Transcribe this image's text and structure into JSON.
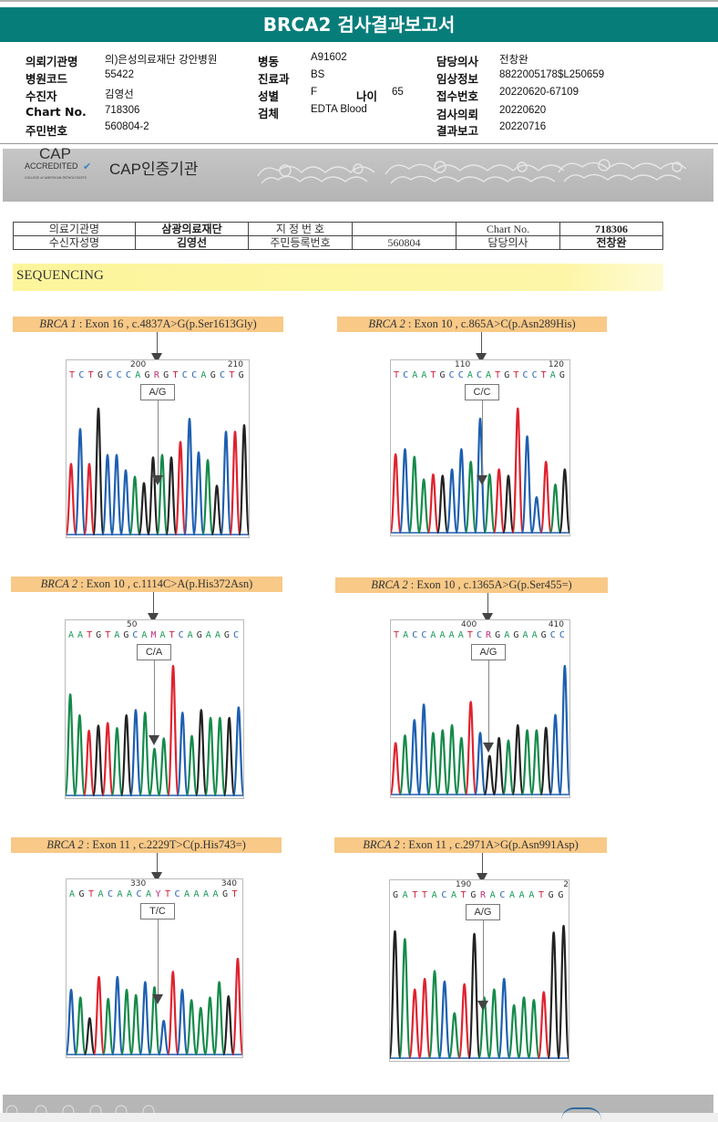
{
  "header": {
    "title": "BRCA2 검사결과보고서",
    "accent_color": "#077d7a"
  },
  "patient_info": {
    "col1": [
      {
        "label": "의뢰기관명",
        "value": "의)은성의료재단 강안병원"
      },
      {
        "label": "병원코드",
        "value": "55422"
      },
      {
        "label": "수진자",
        "value": "김영선"
      },
      {
        "label": "Chart No.",
        "value": "718306"
      },
      {
        "label": "주민번호",
        "value": "560804-2"
      }
    ],
    "col2": [
      {
        "label": "병동",
        "value": "A91602"
      },
      {
        "label": "진료과",
        "value": "BS"
      },
      {
        "label": "성별",
        "value": "F"
      },
      {
        "label": "검체",
        "value": "EDTA Blood"
      }
    ],
    "age": {
      "label": "나이",
      "value": "65"
    },
    "col3": [
      {
        "label": "담당의사",
        "value": "전창완"
      },
      {
        "label": "임상정보",
        "value": "8822005178$L250659"
      },
      {
        "label": "접수번호",
        "value": "20220620-67109"
      },
      {
        "label": "검사의뢰",
        "value": "20220620"
      },
      {
        "label": "결과보고",
        "value": "20220716"
      }
    ]
  },
  "cap_banner": {
    "logo_text": "CAP",
    "logo_sub": "ACCREDITED",
    "logo_small": "COLLEGE of AMERICAN PATHOLOGISTS",
    "title": "CAP인증기관"
  },
  "report_table": {
    "row1": [
      "의료기관명",
      "삼광의료재단",
      "지 정 번 호",
      "",
      "Chart No.",
      "718306"
    ],
    "row2": [
      "수신자성명",
      "김영선",
      "주민등록번호",
      "560804",
      "담당의사",
      "전창완"
    ]
  },
  "section_title": "SEQUENCING",
  "variants": [
    {
      "gene": "BRCA 1",
      "desc": " : Exon 16 , c.4837A>G(p.Ser1613Gly)",
      "pos_left": "200",
      "pos_right": "210",
      "sequence": [
        [
          "T",
          "#d0213b"
        ],
        [
          "C",
          "#2a63b4"
        ],
        [
          "T",
          "#d0213b"
        ],
        [
          "G",
          "#333"
        ],
        [
          "C",
          "#2a63b4"
        ],
        [
          "C",
          "#2a63b4"
        ],
        [
          "C",
          "#2a63b4"
        ],
        [
          "A",
          "#1a9a58"
        ],
        [
          "G",
          "#333"
        ],
        [
          "R",
          "#c0307a"
        ],
        [
          "G",
          "#333"
        ],
        [
          "T",
          "#d0213b"
        ],
        [
          "C",
          "#2a63b4"
        ],
        [
          "C",
          "#2a63b4"
        ],
        [
          "A",
          "#1a9a58"
        ],
        [
          "G",
          "#333"
        ],
        [
          "C",
          "#2a63b4"
        ],
        [
          "T",
          "#d0213b"
        ],
        [
          "G",
          "#333"
        ]
      ],
      "genotype": "A/G",
      "peaks": [
        [
          "r",
          0.55
        ],
        [
          "b",
          0.82
        ],
        [
          "r",
          0.55
        ],
        [
          "k",
          0.98
        ],
        [
          "b",
          0.62
        ],
        [
          "b",
          0.62
        ],
        [
          "b",
          0.5
        ],
        [
          "g",
          0.45
        ],
        [
          "k",
          0.4
        ],
        [
          "k",
          0.6
        ],
        [
          "g",
          0.62
        ],
        [
          "k",
          0.6
        ],
        [
          "r",
          0.72
        ],
        [
          "b",
          0.9
        ],
        [
          "b",
          0.64
        ],
        [
          "g",
          0.58
        ],
        [
          "k",
          0.38
        ],
        [
          "b",
          0.8
        ],
        [
          "r",
          0.8
        ],
        [
          "k",
          0.85
        ]
      ]
    },
    {
      "gene": "BRCA 2",
      "desc": " : Exon 10 , c.865A>C(p.Asn289His)",
      "pos_left": "110",
      "pos_right": "120",
      "sequence": [
        [
          "T",
          "#d0213b"
        ],
        [
          "C",
          "#2a63b4"
        ],
        [
          "A",
          "#1a9a58"
        ],
        [
          "A",
          "#1a9a58"
        ],
        [
          "T",
          "#d0213b"
        ],
        [
          "G",
          "#333"
        ],
        [
          "C",
          "#2a63b4"
        ],
        [
          "C",
          "#2a63b4"
        ],
        [
          "A",
          "#1a9a58"
        ],
        [
          "C",
          "#2a63b4"
        ],
        [
          "A",
          "#1a9a58"
        ],
        [
          "T",
          "#d0213b"
        ],
        [
          "G",
          "#333"
        ],
        [
          "T",
          "#d0213b"
        ],
        [
          "C",
          "#2a63b4"
        ],
        [
          "C",
          "#2a63b4"
        ],
        [
          "T",
          "#d0213b"
        ],
        [
          "A",
          "#1a9a58"
        ],
        [
          "G",
          "#333"
        ]
      ],
      "genotype": "C/C",
      "peaks": [
        [
          "r",
          0.62
        ],
        [
          "b",
          0.66
        ],
        [
          "g",
          0.6
        ],
        [
          "g",
          0.42
        ],
        [
          "r",
          0.46
        ],
        [
          "k",
          0.45
        ],
        [
          "b",
          0.5
        ],
        [
          "b",
          0.66
        ],
        [
          "g",
          0.56
        ],
        [
          "b",
          0.9
        ],
        [
          "g",
          0.46
        ],
        [
          "r",
          0.5
        ],
        [
          "k",
          0.45
        ],
        [
          "r",
          0.98
        ],
        [
          "b",
          0.76
        ],
        [
          "b",
          0.28
        ],
        [
          "r",
          0.56
        ],
        [
          "g",
          0.38
        ],
        [
          "k",
          0.5
        ]
      ]
    },
    {
      "gene": "BRCA 2",
      "desc": " : Exon 10 , c.1114C>A(p.His372Asn)",
      "pos_left": "50",
      "pos_right": "",
      "sequence": [
        [
          "A",
          "#1a9a58"
        ],
        [
          "A",
          "#1a9a58"
        ],
        [
          "T",
          "#d0213b"
        ],
        [
          "G",
          "#333"
        ],
        [
          "T",
          "#d0213b"
        ],
        [
          "A",
          "#1a9a58"
        ],
        [
          "G",
          "#333"
        ],
        [
          "C",
          "#2a63b4"
        ],
        [
          "A",
          "#1a9a58"
        ],
        [
          "M",
          "#c0307a"
        ],
        [
          "A",
          "#1a9a58"
        ],
        [
          "T",
          "#d0213b"
        ],
        [
          "C",
          "#2a63b4"
        ],
        [
          "A",
          "#1a9a58"
        ],
        [
          "G",
          "#333"
        ],
        [
          "A",
          "#1a9a58"
        ],
        [
          "A",
          "#1a9a58"
        ],
        [
          "G",
          "#333"
        ],
        [
          "C",
          "#2a63b4"
        ]
      ],
      "genotype": "C/A",
      "peaks": [
        [
          "g",
          0.78
        ],
        [
          "g",
          0.62
        ],
        [
          "r",
          0.5
        ],
        [
          "k",
          0.54
        ],
        [
          "r",
          0.56
        ],
        [
          "g",
          0.52
        ],
        [
          "k",
          0.62
        ],
        [
          "b",
          0.66
        ],
        [
          "g",
          0.64
        ],
        [
          "g",
          0.36
        ],
        [
          "g",
          0.44
        ],
        [
          "r",
          1.0
        ],
        [
          "b",
          0.64
        ],
        [
          "g",
          0.46
        ],
        [
          "k",
          0.66
        ],
        [
          "g",
          0.6
        ],
        [
          "g",
          0.6
        ],
        [
          "k",
          0.6
        ],
        [
          "b",
          0.68
        ]
      ]
    },
    {
      "gene": "BRCA 2",
      "desc": " : Exon 10 , c.1365A>G(p.Ser455=)",
      "pos_left": "400",
      "pos_right": "410",
      "sequence": [
        [
          "T",
          "#d0213b"
        ],
        [
          "A",
          "#1a9a58"
        ],
        [
          "C",
          "#2a63b4"
        ],
        [
          "C",
          "#2a63b4"
        ],
        [
          "A",
          "#1a9a58"
        ],
        [
          "A",
          "#1a9a58"
        ],
        [
          "A",
          "#1a9a58"
        ],
        [
          "A",
          "#1a9a58"
        ],
        [
          "T",
          "#d0213b"
        ],
        [
          "C",
          "#2a63b4"
        ],
        [
          "R",
          "#c0307a"
        ],
        [
          "G",
          "#333"
        ],
        [
          "A",
          "#1a9a58"
        ],
        [
          "G",
          "#333"
        ],
        [
          "A",
          "#1a9a58"
        ],
        [
          "A",
          "#1a9a58"
        ],
        [
          "G",
          "#333"
        ],
        [
          "C",
          "#2a63b4"
        ],
        [
          "C",
          "#2a63b4"
        ]
      ],
      "genotype": "A/G",
      "peaks": [
        [
          "r",
          0.4
        ],
        [
          "g",
          0.46
        ],
        [
          "b",
          0.58
        ],
        [
          "b",
          0.7
        ],
        [
          "g",
          0.48
        ],
        [
          "g",
          0.5
        ],
        [
          "g",
          0.54
        ],
        [
          "g",
          0.44
        ],
        [
          "r",
          0.72
        ],
        [
          "b",
          0.48
        ],
        [
          "k",
          0.3
        ],
        [
          "k",
          0.44
        ],
        [
          "g",
          0.42
        ],
        [
          "k",
          0.54
        ],
        [
          "g",
          0.5
        ],
        [
          "g",
          0.5
        ],
        [
          "k",
          0.52
        ],
        [
          "b",
          0.62
        ],
        [
          "b",
          1.0
        ]
      ]
    },
    {
      "gene": "BRCA 2",
      "desc": " : Exon 11 , c.2229T>C(p.His743=)",
      "pos_left": "330",
      "pos_right": "340",
      "sequence": [
        [
          "A",
          "#1a9a58"
        ],
        [
          "G",
          "#333"
        ],
        [
          "T",
          "#d0213b"
        ],
        [
          "A",
          "#1a9a58"
        ],
        [
          "C",
          "#2a63b4"
        ],
        [
          "A",
          "#1a9a58"
        ],
        [
          "A",
          "#1a9a58"
        ],
        [
          "C",
          "#2a63b4"
        ],
        [
          "A",
          "#1a9a58"
        ],
        [
          "Y",
          "#c0307a"
        ],
        [
          "T",
          "#d0213b"
        ],
        [
          "C",
          "#2a63b4"
        ],
        [
          "A",
          "#1a9a58"
        ],
        [
          "A",
          "#1a9a58"
        ],
        [
          "A",
          "#1a9a58"
        ],
        [
          "A",
          "#1a9a58"
        ],
        [
          "G",
          "#333"
        ],
        [
          "T",
          "#d0213b"
        ]
      ],
      "genotype": "T/C",
      "peaks": [
        [
          "b",
          0.5
        ],
        [
          "g",
          0.44
        ],
        [
          "k",
          0.28
        ],
        [
          "r",
          0.6
        ],
        [
          "g",
          0.43
        ],
        [
          "b",
          0.6
        ],
        [
          "g",
          0.5
        ],
        [
          "g",
          0.46
        ],
        [
          "b",
          0.56
        ],
        [
          "g",
          0.52
        ],
        [
          "b",
          0.26
        ],
        [
          "r",
          0.64
        ],
        [
          "b",
          0.5
        ],
        [
          "g",
          0.42
        ],
        [
          "g",
          0.36
        ],
        [
          "g",
          0.44
        ],
        [
          "g",
          0.56
        ],
        [
          "k",
          0.45
        ],
        [
          "r",
          0.74
        ]
      ]
    },
    {
      "gene": "BRCA 2",
      "desc": " : Exon 11 , c.2971A>G(p.Asn991Asp)",
      "pos_left": "190",
      "pos_right": "2",
      "sequence": [
        [
          "G",
          "#333"
        ],
        [
          "A",
          "#1a9a58"
        ],
        [
          "T",
          "#d0213b"
        ],
        [
          "T",
          "#d0213b"
        ],
        [
          "A",
          "#1a9a58"
        ],
        [
          "C",
          "#2a63b4"
        ],
        [
          "A",
          "#1a9a58"
        ],
        [
          "T",
          "#d0213b"
        ],
        [
          "G",
          "#333"
        ],
        [
          "R",
          "#c0307a"
        ],
        [
          "A",
          "#1a9a58"
        ],
        [
          "C",
          "#2a63b4"
        ],
        [
          "A",
          "#1a9a58"
        ],
        [
          "A",
          "#1a9a58"
        ],
        [
          "A",
          "#1a9a58"
        ],
        [
          "T",
          "#d0213b"
        ],
        [
          "G",
          "#333"
        ],
        [
          "G",
          "#333"
        ]
      ],
      "genotype": "A/G",
      "peaks": [
        [
          "k",
          0.96
        ],
        [
          "g",
          0.9
        ],
        [
          "r",
          0.52
        ],
        [
          "r",
          0.6
        ],
        [
          "g",
          0.66
        ],
        [
          "b",
          0.58
        ],
        [
          "g",
          0.34
        ],
        [
          "r",
          0.56
        ],
        [
          "k",
          0.94
        ],
        [
          "g",
          0.46
        ],
        [
          "g",
          0.52
        ],
        [
          "b",
          0.6
        ],
        [
          "g",
          0.4
        ],
        [
          "g",
          0.46
        ],
        [
          "g",
          0.44
        ],
        [
          "r",
          0.5
        ],
        [
          "k",
          0.95
        ],
        [
          "k",
          1.0
        ]
      ]
    }
  ],
  "trace_colors": {
    "r": "#e0222e",
    "b": "#1d5fb0",
    "g": "#148a4a",
    "k": "#222222"
  }
}
